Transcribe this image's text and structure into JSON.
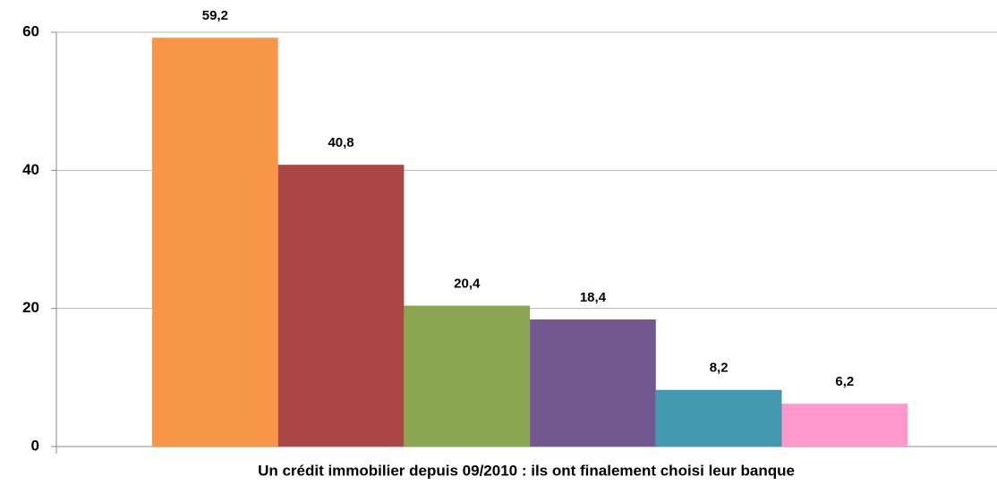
{
  "chart_data": {
    "type": "bar",
    "categories": [
      "Un crédit immobilier depuis 09/2010 : ils ont finalement choisi leur banque"
    ],
    "series": [
      {
        "color": "#f79646",
        "values": [
          59.2
        ],
        "value_labels": [
          "59,2"
        ]
      },
      {
        "color": "#ab4745",
        "values": [
          40.8
        ],
        "value_labels": [
          "40,8"
        ]
      },
      {
        "color": "#8ba650",
        "values": [
          20.4
        ],
        "value_labels": [
          "20,4"
        ]
      },
      {
        "color": "#73588f",
        "values": [
          18.4
        ],
        "value_labels": [
          "18,4"
        ]
      },
      {
        "color": "#4198af",
        "values": [
          8.2
        ],
        "value_labels": [
          "8,2"
        ]
      },
      {
        "color": "#ff99cc",
        "values": [
          6.2
        ],
        "value_labels": [
          "6,2"
        ]
      }
    ],
    "ylim": [
      0,
      60
    ],
    "yticks": [
      0,
      20,
      40,
      60
    ],
    "grid": true
  }
}
